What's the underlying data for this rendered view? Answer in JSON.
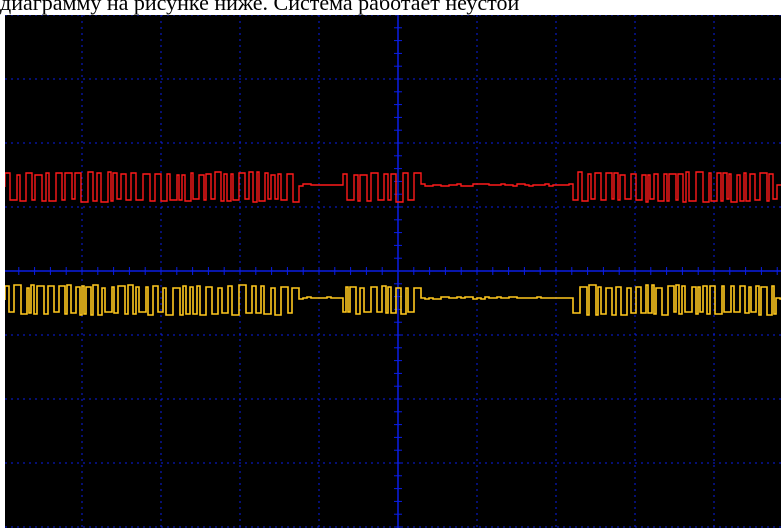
{
  "caption": {
    "text": "диаграмму на рисунке ниже. Система работает неустой"
  },
  "oscilloscope": {
    "background_color": "#000000",
    "grid_color": "#0a1ee6",
    "divisions": {
      "horizontal": 10,
      "vertical": 8
    },
    "channels": [
      {
        "id": "ch1",
        "color": "#ff1a1a",
        "level_fraction": 0.335
      },
      {
        "id": "ch2",
        "color": "#ffc81e",
        "level_fraction": 0.555
      }
    ]
  }
}
